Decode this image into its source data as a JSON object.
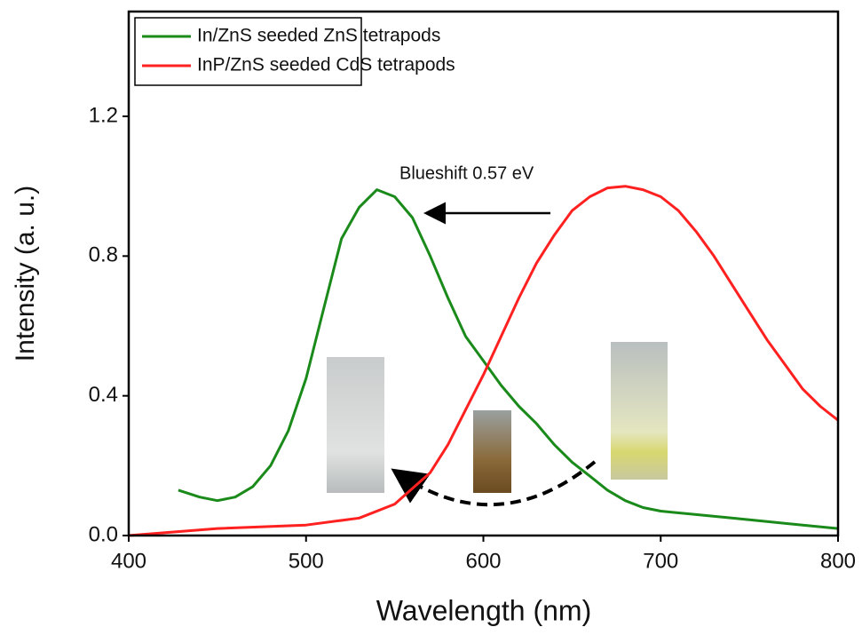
{
  "chart_data": {
    "type": "line",
    "xlabel": "Wavelength (nm)",
    "ylabel": "Intensity (a. u.)",
    "annotation": "Blueshift 0.57 eV",
    "xlim": [
      400,
      800
    ],
    "ylim": [
      0,
      1.5
    ],
    "xticks": [
      400,
      500,
      600,
      700,
      800
    ],
    "yticks": [
      {
        "value": 0,
        "label": "0.0"
      },
      0.4,
      0.8,
      1.2
    ],
    "legend": "upper left",
    "series": [
      {
        "name": "In/ZnS seeded ZnS tetrapods",
        "color": "#1a8a1a",
        "x": [
          428,
          440,
          450,
          460,
          470,
          480,
          490,
          500,
          510,
          520,
          530,
          540,
          550,
          560,
          570,
          580,
          590,
          600,
          610,
          620,
          630,
          640,
          650,
          660,
          670,
          680,
          690,
          700,
          720,
          740,
          760,
          780,
          800
        ],
        "values": [
          0.13,
          0.11,
          0.1,
          0.11,
          0.14,
          0.2,
          0.3,
          0.45,
          0.65,
          0.85,
          0.94,
          0.99,
          0.97,
          0.91,
          0.8,
          0.68,
          0.57,
          0.5,
          0.43,
          0.37,
          0.32,
          0.26,
          0.21,
          0.17,
          0.13,
          0.1,
          0.08,
          0.07,
          0.06,
          0.05,
          0.04,
          0.03,
          0.02
        ]
      },
      {
        "name": "InP/ZnS seeded CdS tetrapods",
        "color": "#ff2020",
        "x": [
          400,
          450,
          500,
          530,
          550,
          570,
          580,
          590,
          600,
          610,
          620,
          630,
          640,
          650,
          660,
          670,
          680,
          690,
          700,
          710,
          720,
          730,
          740,
          750,
          760,
          770,
          780,
          790,
          800
        ],
        "values": [
          0,
          0.02,
          0.03,
          0.05,
          0.09,
          0.18,
          0.26,
          0.36,
          0.46,
          0.57,
          0.68,
          0.78,
          0.86,
          0.93,
          0.97,
          0.995,
          1.0,
          0.99,
          0.97,
          0.93,
          0.87,
          0.8,
          0.72,
          0.64,
          0.56,
          0.49,
          0.42,
          0.37,
          0.33
        ]
      }
    ]
  }
}
